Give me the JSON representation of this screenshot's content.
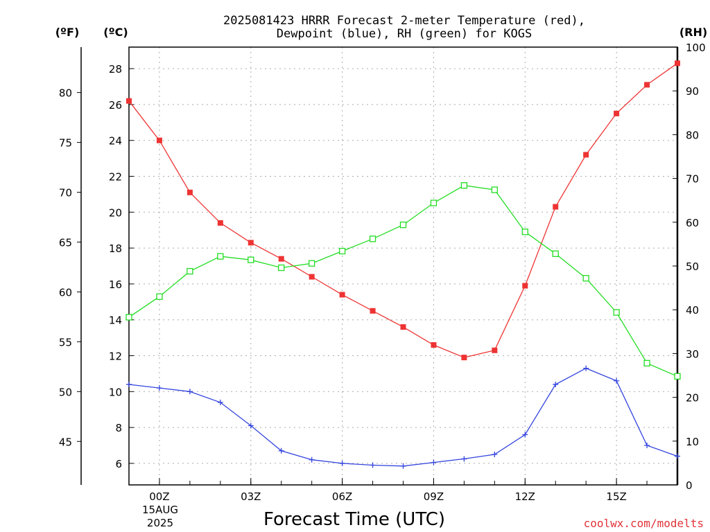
{
  "chart_data": {
    "type": "line",
    "title_line1": "2025081423 HRRR Forecast 2-meter Temperature (red),",
    "title_line2": "Dewpoint (blue), RH (green) for KOGS",
    "xlabel": "Forecast Time (UTC)",
    "credit": "coolwx.com/modelts",
    "unit_f": "(ºF)",
    "unit_c": "(ºC)",
    "unit_rh": "(RH)",
    "x_hours": [
      -1,
      0,
      1,
      2,
      3,
      4,
      5,
      6,
      7,
      8,
      9,
      10,
      11,
      12,
      13,
      14,
      15,
      16,
      17
    ],
    "xlim": [
      -1,
      17
    ],
    "x_ticks": [
      {
        "hour": 0,
        "label": "00Z"
      },
      {
        "hour": 3,
        "label": "03Z"
      },
      {
        "hour": 6,
        "label": "06Z"
      },
      {
        "hour": 9,
        "label": "09Z"
      },
      {
        "hour": 12,
        "label": "12Z"
      },
      {
        "hour": 15,
        "label": "15Z"
      }
    ],
    "date_label_line1": "15AUG",
    "date_label_line2": "2025",
    "c_ylim": [
      4.8,
      29.2
    ],
    "c_ticks": [
      "6",
      "8",
      "10",
      "12",
      "14",
      "16",
      "18",
      "20",
      "22",
      "24",
      "26",
      "28"
    ],
    "f_ticks": [
      "45",
      "50",
      "55",
      "60",
      "65",
      "70",
      "75",
      "80"
    ],
    "rh_ylim": [
      0,
      100
    ],
    "rh_ticks": [
      "0",
      "10",
      "20",
      "30",
      "40",
      "50",
      "60",
      "70",
      "80",
      "90",
      "100"
    ],
    "grid": true,
    "series": [
      {
        "axis": "c",
        "color": "#ee3333",
        "marker": "filled-square",
        "values": [
          26.2,
          24.0,
          21.1,
          19.4,
          18.3,
          17.4,
          16.4,
          15.4,
          14.5,
          13.6,
          12.6,
          11.9,
          12.3,
          15.9,
          20.3,
          23.2,
          25.5,
          27.1,
          28.3
        ]
      },
      {
        "axis": "c",
        "color": "#3344dd",
        "marker": "plus",
        "values": [
          10.4,
          10.2,
          10.0,
          9.4,
          8.1,
          6.7,
          6.2,
          6.0,
          5.9,
          5.85,
          6.05,
          6.25,
          6.5,
          7.6,
          10.4,
          11.3,
          10.6,
          7.0,
          6.4
        ]
      },
      {
        "axis": "rh",
        "color": "#22dd22",
        "marker": "open-square",
        "values": [
          38.3,
          43.0,
          48.8,
          52.2,
          51.4,
          49.6,
          50.6,
          53.4,
          56.2,
          59.4,
          64.4,
          68.4,
          67.4,
          57.8,
          52.8,
          47.2,
          39.4,
          27.8,
          24.8
        ]
      }
    ]
  }
}
